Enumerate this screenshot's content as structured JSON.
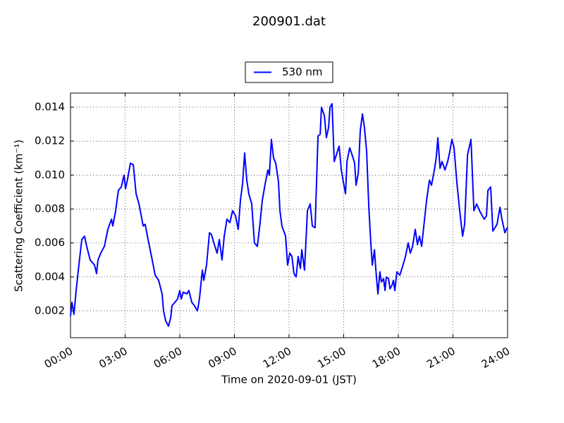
{
  "chart_data": {
    "type": "line",
    "title": "200901.dat",
    "x_label": "Time on 2020-09-01 (JST)",
    "y_label": "Scattering Coefficient (km⁻¹)",
    "legend_position": "upper center",
    "grid": true,
    "xlim": [
      0,
      24
    ],
    "xticks": [
      {
        "value": 0,
        "label": "00:00"
      },
      {
        "value": 3,
        "label": "03:00"
      },
      {
        "value": 6,
        "label": "06:00"
      },
      {
        "value": 9,
        "label": "09:00"
      },
      {
        "value": 12,
        "label": "12:00"
      },
      {
        "value": 15,
        "label": "15:00"
      },
      {
        "value": 18,
        "label": "18:00"
      },
      {
        "value": 21,
        "label": "21:00"
      },
      {
        "value": 24,
        "label": "24:00"
      }
    ],
    "ylim": [
      0.00042,
      0.01483
    ],
    "yticks": [
      0.002,
      0.004,
      0.006,
      0.008,
      {
        "value": 0.01,
        "label": "0.010"
      },
      0.012,
      0.014
    ],
    "x": [
      0,
      0.08,
      0.19,
      0.31,
      0.46,
      0.62,
      0.77,
      0.89,
      1.08,
      1.32,
      1.43,
      1.51,
      1.66,
      1.86,
      2.05,
      2.25,
      2.32,
      2.48,
      2.63,
      2.79,
      2.94,
      3.02,
      3.14,
      3.29,
      3.45,
      3.6,
      3.76,
      3.99,
      4.1,
      4.26,
      4.45,
      4.65,
      4.84,
      5.03,
      5.11,
      5.23,
      5.38,
      5.5,
      5.57,
      5.73,
      5.88,
      6,
      6.08,
      6.19,
      6.39,
      6.5,
      6.66,
      6.81,
      6.97,
      7.08,
      7.24,
      7.32,
      7.47,
      7.63,
      7.74,
      7.9,
      8.05,
      8.17,
      8.32,
      8.44,
      8.59,
      8.75,
      8.9,
      9.06,
      9.21,
      9.33,
      9.45,
      9.56,
      9.68,
      9.79,
      9.95,
      10.1,
      10.26,
      10.41,
      10.53,
      10.69,
      10.84,
      10.92,
      11.03,
      11.15,
      11.27,
      11.42,
      11.5,
      11.61,
      11.81,
      11.92,
      12.04,
      12.16,
      12.27,
      12.39,
      12.5,
      12.62,
      12.7,
      12.85,
      13.01,
      13.16,
      13.28,
      13.43,
      13.59,
      13.71,
      13.78,
      13.94,
      14.05,
      14.17,
      14.25,
      14.36,
      14.48,
      14.6,
      14.75,
      14.87,
      14.98,
      15.1,
      15.18,
      15.33,
      15.49,
      15.6,
      15.68,
      15.8,
      15.91,
      16.03,
      16.14,
      16.26,
      16.38,
      16.49,
      16.57,
      16.69,
      16.76,
      16.88,
      16.99,
      17.07,
      17.19,
      17.27,
      17.34,
      17.46,
      17.54,
      17.65,
      17.73,
      17.81,
      17.92,
      18.08,
      18.23,
      18.39,
      18.54,
      18.66,
      18.78,
      18.93,
      19.05,
      19.16,
      19.28,
      19.4,
      19.55,
      19.71,
      19.82,
      19.98,
      20.09,
      20.17,
      20.29,
      20.4,
      20.56,
      20.71,
      20.83,
      20.94,
      21.06,
      21.22,
      21.37,
      21.53,
      21.64,
      21.8,
      21.99,
      22.15,
      22.3,
      22.46,
      22.61,
      22.72,
      22.84,
      22.92,
      23.07,
      23.19,
      23.31,
      23.42,
      23.58,
      23.69,
      23.85,
      23.97
    ],
    "series": [
      {
        "name": "530 nm",
        "color": "#0000ff",
        "values": [
          0.0017,
          0.0025,
          0.0018,
          0.0032,
          0.0047,
          0.0062,
          0.0064,
          0.0058,
          0.005,
          0.0047,
          0.0042,
          0.005,
          0.0054,
          0.0058,
          0.0068,
          0.0074,
          0.007,
          0.0079,
          0.0091,
          0.0093,
          0.01,
          0.0092,
          0.0098,
          0.0107,
          0.0106,
          0.0089,
          0.0083,
          0.007,
          0.0071,
          0.0062,
          0.0052,
          0.0041,
          0.0038,
          0.003,
          0.002,
          0.0014,
          0.0011,
          0.0016,
          0.0023,
          0.0025,
          0.0027,
          0.0032,
          0.0027,
          0.0031,
          0.003,
          0.0032,
          0.0025,
          0.0023,
          0.002,
          0.0027,
          0.0044,
          0.0038,
          0.0047,
          0.0066,
          0.0065,
          0.0059,
          0.0054,
          0.0062,
          0.005,
          0.0064,
          0.0074,
          0.0072,
          0.0079,
          0.0076,
          0.0068,
          0.0085,
          0.0095,
          0.0113,
          0.0097,
          0.0089,
          0.0083,
          0.006,
          0.0058,
          0.0072,
          0.0085,
          0.0095,
          0.0103,
          0.01,
          0.0121,
          0.011,
          0.0107,
          0.0096,
          0.0079,
          0.007,
          0.0064,
          0.0047,
          0.0054,
          0.0052,
          0.0042,
          0.004,
          0.0052,
          0.0045,
          0.0056,
          0.0044,
          0.0079,
          0.0083,
          0.007,
          0.0069,
          0.0123,
          0.0124,
          0.014,
          0.0135,
          0.0122,
          0.0128,
          0.014,
          0.0142,
          0.0108,
          0.0112,
          0.0117,
          0.0103,
          0.0096,
          0.0089,
          0.0108,
          0.0116,
          0.0111,
          0.0107,
          0.0094,
          0.0101,
          0.0126,
          0.0136,
          0.0128,
          0.0114,
          0.0081,
          0.006,
          0.0047,
          0.0056,
          0.0045,
          0.003,
          0.0043,
          0.0037,
          0.0039,
          0.0032,
          0.004,
          0.0039,
          0.0033,
          0.0035,
          0.0038,
          0.0032,
          0.0043,
          0.0041,
          0.0046,
          0.0052,
          0.006,
          0.0054,
          0.0058,
          0.0068,
          0.0059,
          0.0064,
          0.0058,
          0.007,
          0.0085,
          0.0097,
          0.0094,
          0.0103,
          0.0111,
          0.0122,
          0.0104,
          0.0108,
          0.0103,
          0.0108,
          0.0114,
          0.0121,
          0.0116,
          0.0095,
          0.0079,
          0.0064,
          0.0071,
          0.0112,
          0.0121,
          0.0079,
          0.0083,
          0.0079,
          0.0076,
          0.0074,
          0.0076,
          0.0091,
          0.0093,
          0.0067,
          0.0069,
          0.0071,
          0.0081,
          0.0074,
          0.0066,
          0.0069
        ]
      }
    ]
  }
}
